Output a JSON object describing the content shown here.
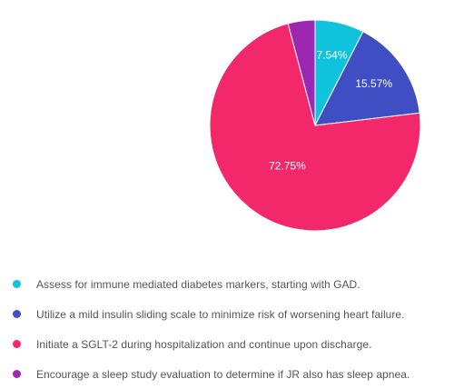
{
  "chart_data": {
    "type": "pie",
    "start_angle": "12 o'clock, clockwise",
    "categories": [
      "Assess for immune mediated diabetes markers, starting with GAD.",
      "Utilize a mild insulin sliding scale to minimize risk of worsening heart failure.",
      "Initiate a SGLT-2 during hospitalization and continue upon discharge.",
      "Encourage a sleep study evaluation to determine if JR also has sleep apnea."
    ],
    "values": [
      7.54,
      15.57,
      72.75,
      4.14
    ],
    "value_labels": [
      "7.54%",
      "15.57%",
      "72.75%",
      ""
    ],
    "colors": [
      "#10c3dd",
      "#3f4fc3",
      "#f2286a",
      "#9c27b0"
    ],
    "legend_position": "bottom-left"
  }
}
